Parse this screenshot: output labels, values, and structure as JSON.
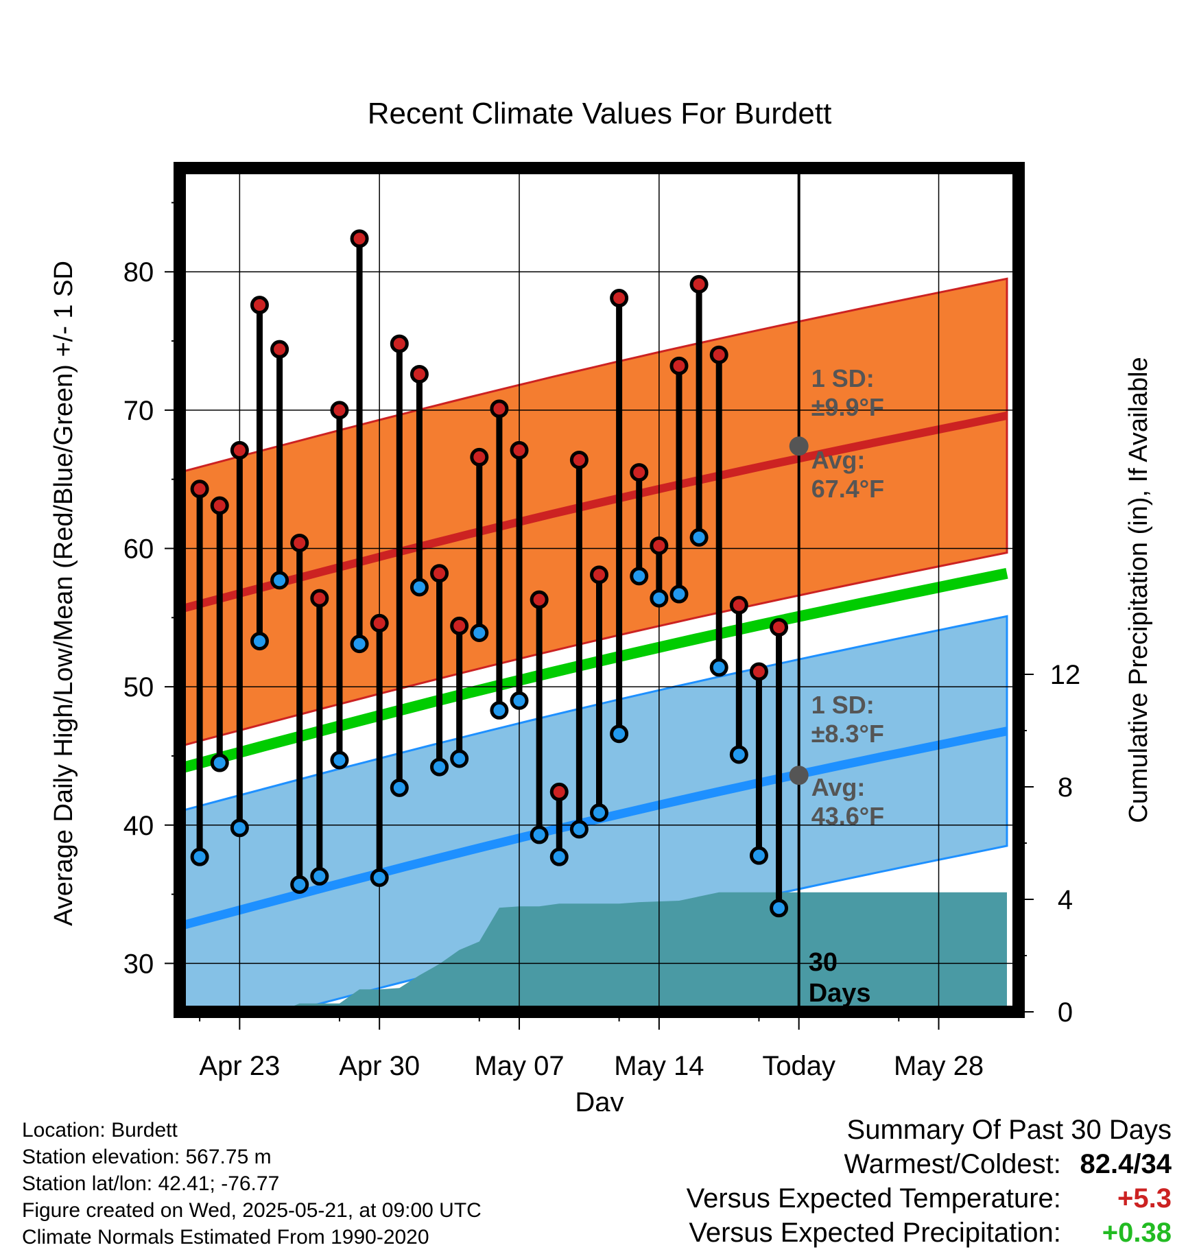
{
  "chart_data": {
    "type": "line",
    "title": "Recent Climate Values For Burdett",
    "xlabel": "Day",
    "ylabel": "Average Daily High/Low/Mean (Red/Blue/Green) +/- 1 SD",
    "y2label": "Cumulative Precipitation (in), If Available",
    "x_ticks": [
      "Apr 23",
      "Apr 30",
      "May 07",
      "May 14",
      "Today",
      "May 28"
    ],
    "x_range": [
      "2025-04-20",
      "2025-06-01"
    ],
    "ylim": [
      26.5,
      87.5
    ],
    "y_ticks": [
      30,
      40,
      50,
      60,
      70,
      80
    ],
    "y2lim": [
      0,
      30
    ],
    "y2_ticks": [
      0,
      4,
      8,
      12
    ],
    "grid": true,
    "today": "2025-05-21",
    "today_label": "30 Days",
    "normals": {
      "high_avg": [
        55.6,
        69.6
      ],
      "low_avg": [
        32.7,
        46.8
      ],
      "mean_avg": [
        44.1,
        58.2
      ],
      "high_sd": 9.9,
      "low_sd": 8.3
    },
    "annotations": {
      "high_sd_text": "1 SD: ±9.9°F",
      "high_avg_text": "Avg: 67.4°F",
      "low_sd_text": "1 SD: ±8.3°F",
      "low_avg_text": "Avg: 43.6°F",
      "high_today": 67.4,
      "low_today": 43.6
    },
    "series": [
      {
        "name": "High",
        "color": "#cc2222",
        "values": [
          [
            "2025-04-21",
            64.3
          ],
          [
            "2025-04-22",
            63.1
          ],
          [
            "2025-04-23",
            67.1
          ],
          [
            "2025-04-24",
            77.6
          ],
          [
            "2025-04-25",
            74.4
          ],
          [
            "2025-04-26",
            60.4
          ],
          [
            "2025-04-27",
            56.4
          ],
          [
            "2025-04-28",
            70.0
          ],
          [
            "2025-04-29",
            82.4
          ],
          [
            "2025-04-30",
            54.6
          ],
          [
            "2025-05-01",
            74.8
          ],
          [
            "2025-05-02",
            72.6
          ],
          [
            "2025-05-03",
            58.2
          ],
          [
            "2025-05-04",
            54.4
          ],
          [
            "2025-05-05",
            66.6
          ],
          [
            "2025-05-06",
            70.1
          ],
          [
            "2025-05-07",
            67.1
          ],
          [
            "2025-05-08",
            56.3
          ],
          [
            "2025-05-09",
            42.4
          ],
          [
            "2025-05-10",
            66.4
          ],
          [
            "2025-05-11",
            58.1
          ],
          [
            "2025-05-12",
            78.1
          ],
          [
            "2025-05-13",
            65.5
          ],
          [
            "2025-05-14",
            60.2
          ],
          [
            "2025-05-15",
            73.2
          ],
          [
            "2025-05-16",
            79.1
          ],
          [
            "2025-05-17",
            74.0
          ],
          [
            "2025-05-18",
            55.9
          ],
          [
            "2025-05-19",
            51.1
          ],
          [
            "2025-05-20",
            54.3
          ]
        ]
      },
      {
        "name": "Low",
        "color": "#2299ee",
        "values": [
          [
            "2025-04-21",
            37.7
          ],
          [
            "2025-04-22",
            44.5
          ],
          [
            "2025-04-23",
            39.8
          ],
          [
            "2025-04-24",
            53.3
          ],
          [
            "2025-04-25",
            57.7
          ],
          [
            "2025-04-26",
            35.7
          ],
          [
            "2025-04-27",
            36.3
          ],
          [
            "2025-04-28",
            44.7
          ],
          [
            "2025-04-29",
            53.1
          ],
          [
            "2025-04-30",
            36.2
          ],
          [
            "2025-05-01",
            42.7
          ],
          [
            "2025-05-02",
            57.2
          ],
          [
            "2025-05-03",
            44.2
          ],
          [
            "2025-05-04",
            44.8
          ],
          [
            "2025-05-05",
            53.9
          ],
          [
            "2025-05-06",
            48.3
          ],
          [
            "2025-05-07",
            49.0
          ],
          [
            "2025-05-08",
            39.3
          ],
          [
            "2025-05-09",
            37.7
          ],
          [
            "2025-05-10",
            39.7
          ],
          [
            "2025-05-11",
            40.9
          ],
          [
            "2025-05-12",
            46.6
          ],
          [
            "2025-05-13",
            58.0
          ],
          [
            "2025-05-14",
            56.4
          ],
          [
            "2025-05-15",
            56.7
          ],
          [
            "2025-05-16",
            60.8
          ],
          [
            "2025-05-17",
            51.4
          ],
          [
            "2025-05-18",
            45.1
          ],
          [
            "2025-05-19",
            37.8
          ],
          [
            "2025-05-20",
            34.0
          ]
        ]
      },
      {
        "name": "Precipitation",
        "color": "#4a9aa4",
        "values": [
          [
            "2025-04-20",
            0.0
          ],
          [
            "2025-04-23",
            0.0
          ],
          [
            "2025-04-25",
            0.0
          ],
          [
            "2025-04-26",
            0.3
          ],
          [
            "2025-04-28",
            0.3
          ],
          [
            "2025-04-29",
            0.8
          ],
          [
            "2025-04-30",
            0.8
          ],
          [
            "2025-05-01",
            0.85
          ],
          [
            "2025-05-02",
            1.3
          ],
          [
            "2025-05-03",
            1.7
          ],
          [
            "2025-05-04",
            2.2
          ],
          [
            "2025-05-05",
            2.5
          ],
          [
            "2025-05-06",
            3.7
          ],
          [
            "2025-05-07",
            3.75
          ],
          [
            "2025-05-08",
            3.75
          ],
          [
            "2025-05-09",
            3.85
          ],
          [
            "2025-05-12",
            3.85
          ],
          [
            "2025-05-13",
            3.9
          ],
          [
            "2025-05-15",
            3.95
          ],
          [
            "2025-05-17",
            4.25
          ],
          [
            "2025-05-20",
            4.25
          ],
          [
            "2025-06-01",
            4.25
          ]
        ]
      }
    ]
  },
  "footer": {
    "location": "Location: Burdett",
    "elevation": "Station elevation: 567.75 m",
    "latlon": "Station lat/lon: 42.41; -76.77",
    "created": "Figure created on Wed, 2025-05-21, at 09:00 UTC",
    "normals": "Climate Normals Estimated From 1990-2020"
  },
  "summary": {
    "title": "Summary Of Past 30 Days",
    "warmest_label": "Warmest/Coldest:",
    "warmest_value": "82.4/34",
    "temp_label": "Versus Expected Temperature:",
    "temp_value": "+5.3",
    "precip_label": "Versus Expected Precipitation:",
    "precip_value": "+0.38",
    "colors": {
      "temp": "#cc2222",
      "precip": "#22bb22"
    }
  }
}
